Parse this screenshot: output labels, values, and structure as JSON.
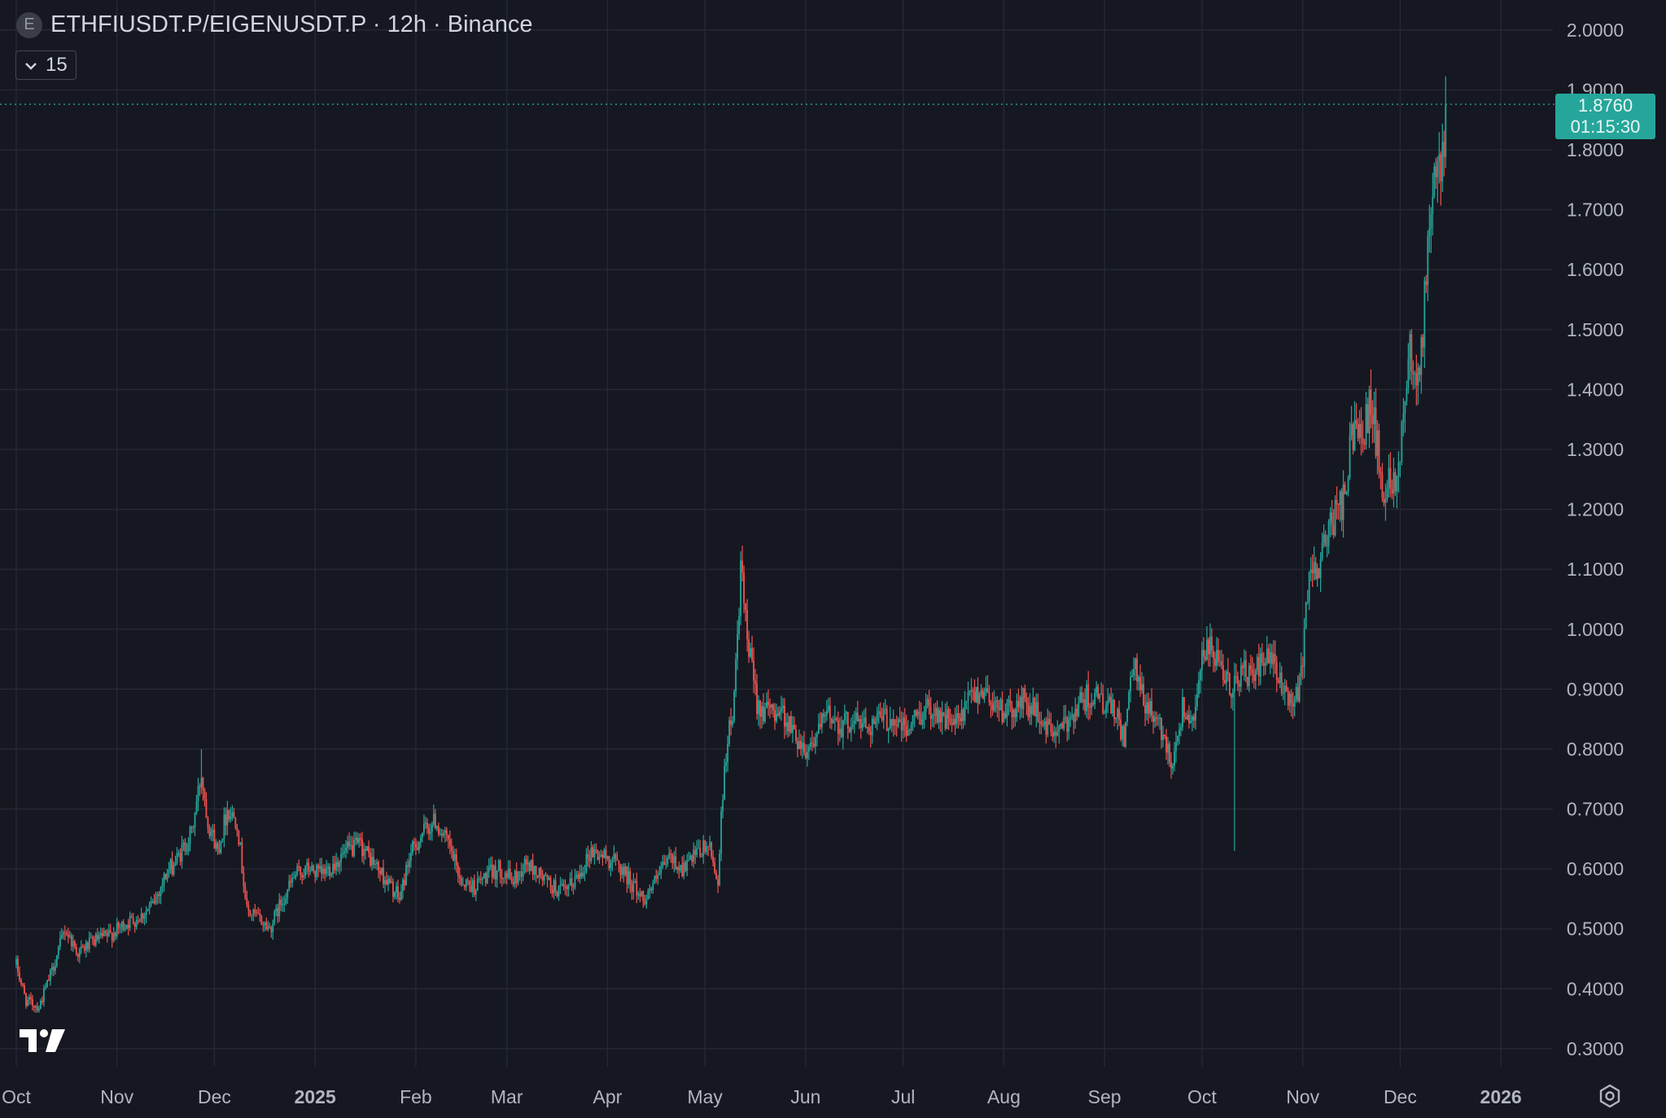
{
  "header": {
    "badge": "E",
    "title": "ETHFIUSDT.P/EIGENUSDT.P · 12h · Binance"
  },
  "interval_selector": {
    "value": "15"
  },
  "last_price": {
    "value": "1.8760",
    "countdown": "01:15:30"
  },
  "colors": {
    "background": "#161821",
    "grid": "#262936",
    "up": "#26a69a",
    "down": "#ef5350",
    "text": "#d1d4dc",
    "axis_text": "#b2b5be"
  },
  "icons": [
    "chevron-down-icon",
    "tradingview-logo-icon",
    "settings-icon"
  ],
  "chart_data": {
    "type": "candlestick",
    "title": "ETHFIUSDT.P/EIGENUSDT.P · 12h · Binance",
    "y_axis": {
      "position": "right",
      "ylim": [
        0.27,
        2.05
      ],
      "ticks": [
        2.0,
        1.9,
        1.8,
        1.7,
        1.6,
        1.5,
        1.4,
        1.3,
        1.2,
        1.1,
        1.0,
        0.9,
        0.8,
        0.7,
        0.6,
        0.5,
        0.4,
        0.3
      ],
      "tick_labels": [
        "2.0000",
        "1.9000",
        "1.8000",
        "1.7000",
        "1.6000",
        "1.5000",
        "1.4000",
        "1.3000",
        "1.2000",
        "1.1000",
        "1.0000",
        "0.9000",
        "0.8000",
        "0.7000",
        "0.6000",
        "0.5000",
        "0.4000",
        "0.3000"
      ]
    },
    "x_axis": {
      "xlim": [
        "2024-09-26",
        "2026-01-17"
      ],
      "ticks": [
        "2024-10-01",
        "2024-11-01",
        "2024-12-01",
        "2025-01-01",
        "2025-02-01",
        "2025-03-01",
        "2025-04-01",
        "2025-05-01",
        "2025-06-01",
        "2025-07-01",
        "2025-08-01",
        "2025-09-01",
        "2025-10-01",
        "2025-11-01",
        "2025-12-01",
        "2026-01-01"
      ],
      "tick_labels": [
        "Oct",
        "Nov",
        "Dec",
        "2025",
        "Feb",
        "Mar",
        "Apr",
        "May",
        "Jun",
        "Jul",
        "Aug",
        "Sep",
        "Oct",
        "Nov",
        "Dec",
        "2026"
      ],
      "bold_labels": [
        "2025",
        "2026"
      ]
    },
    "grid": true,
    "last_price_line": 1.876,
    "series": [
      {
        "interval": "12h",
        "start": "2024-10-01",
        "approx_closes": [
          [
            "2024-10-01",
            0.44
          ],
          [
            "2024-10-04",
            0.38
          ],
          [
            "2024-10-08",
            0.37
          ],
          [
            "2024-10-12",
            0.43
          ],
          [
            "2024-10-16",
            0.5
          ],
          [
            "2024-10-20",
            0.46
          ],
          [
            "2024-10-25",
            0.48
          ],
          [
            "2024-10-30",
            0.49
          ],
          [
            "2024-11-04",
            0.51
          ],
          [
            "2024-11-08",
            0.52
          ],
          [
            "2024-11-12",
            0.54
          ],
          [
            "2024-11-16",
            0.59
          ],
          [
            "2024-11-20",
            0.62
          ],
          [
            "2024-11-24",
            0.66
          ],
          [
            "2024-11-27",
            0.76
          ],
          [
            "2024-11-29",
            0.68
          ],
          [
            "2024-12-02",
            0.63
          ],
          [
            "2024-12-05",
            0.7
          ],
          [
            "2024-12-08",
            0.68
          ],
          [
            "2024-12-11",
            0.53
          ],
          [
            "2024-12-14",
            0.52
          ],
          [
            "2024-12-18",
            0.5
          ],
          [
            "2024-12-22",
            0.55
          ],
          [
            "2024-12-26",
            0.59
          ],
          [
            "2024-12-30",
            0.6
          ],
          [
            "2025-01-03",
            0.59
          ],
          [
            "2025-01-07",
            0.61
          ],
          [
            "2025-01-11",
            0.63
          ],
          [
            "2025-01-15",
            0.64
          ],
          [
            "2025-01-19",
            0.61
          ],
          [
            "2025-01-23",
            0.58
          ],
          [
            "2025-01-27",
            0.55
          ],
          [
            "2025-01-30",
            0.62
          ],
          [
            "2025-02-03",
            0.66
          ],
          [
            "2025-02-07",
            0.68
          ],
          [
            "2025-02-11",
            0.64
          ],
          [
            "2025-02-15",
            0.58
          ],
          [
            "2025-02-19",
            0.57
          ],
          [
            "2025-02-23",
            0.59
          ],
          [
            "2025-02-27",
            0.6
          ],
          [
            "2025-03-03",
            0.58
          ],
          [
            "2025-03-07",
            0.61
          ],
          [
            "2025-03-11",
            0.59
          ],
          [
            "2025-03-15",
            0.57
          ],
          [
            "2025-03-19",
            0.56
          ],
          [
            "2025-03-23",
            0.59
          ],
          [
            "2025-03-27",
            0.63
          ],
          [
            "2025-03-31",
            0.62
          ],
          [
            "2025-04-04",
            0.61
          ],
          [
            "2025-04-08",
            0.58
          ],
          [
            "2025-04-12",
            0.55
          ],
          [
            "2025-04-16",
            0.58
          ],
          [
            "2025-04-20",
            0.62
          ],
          [
            "2025-04-24",
            0.6
          ],
          [
            "2025-04-28",
            0.62
          ],
          [
            "2025-05-02",
            0.64
          ],
          [
            "2025-05-05",
            0.58
          ],
          [
            "2025-05-07",
            0.78
          ],
          [
            "2025-05-10",
            0.88
          ],
          [
            "2025-05-12",
            1.1
          ],
          [
            "2025-05-14",
            0.98
          ],
          [
            "2025-05-17",
            0.88
          ],
          [
            "2025-05-20",
            0.86
          ],
          [
            "2025-05-24",
            0.87
          ],
          [
            "2025-05-28",
            0.83
          ],
          [
            "2025-06-01",
            0.8
          ],
          [
            "2025-06-04",
            0.82
          ],
          [
            "2025-06-08",
            0.86
          ],
          [
            "2025-06-12",
            0.84
          ],
          [
            "2025-06-16",
            0.85
          ],
          [
            "2025-06-20",
            0.84
          ],
          [
            "2025-06-24",
            0.85
          ],
          [
            "2025-06-28",
            0.85
          ],
          [
            "2025-07-02",
            0.83
          ],
          [
            "2025-07-06",
            0.86
          ],
          [
            "2025-07-10",
            0.87
          ],
          [
            "2025-07-14",
            0.85
          ],
          [
            "2025-07-18",
            0.84
          ],
          [
            "2025-07-22",
            0.89
          ],
          [
            "2025-07-26",
            0.9
          ],
          [
            "2025-07-30",
            0.87
          ],
          [
            "2025-08-03",
            0.86
          ],
          [
            "2025-08-07",
            0.88
          ],
          [
            "2025-08-11",
            0.86
          ],
          [
            "2025-08-15",
            0.83
          ],
          [
            "2025-08-19",
            0.83
          ],
          [
            "2025-08-23",
            0.87
          ],
          [
            "2025-08-27",
            0.89
          ],
          [
            "2025-08-31",
            0.88
          ],
          [
            "2025-09-04",
            0.86
          ],
          [
            "2025-09-07",
            0.82
          ],
          [
            "2025-09-10",
            0.94
          ],
          [
            "2025-09-13",
            0.88
          ],
          [
            "2025-09-16",
            0.86
          ],
          [
            "2025-09-19",
            0.82
          ],
          [
            "2025-09-22",
            0.78
          ],
          [
            "2025-09-25",
            0.87
          ],
          [
            "2025-09-28",
            0.85
          ],
          [
            "2025-10-01",
            0.95
          ],
          [
            "2025-10-04",
            0.97
          ],
          [
            "2025-10-07",
            0.92
          ],
          [
            "2025-10-10",
            0.9
          ],
          [
            "2025-10-13",
            0.93
          ],
          [
            "2025-10-16",
            0.92
          ],
          [
            "2025-10-19",
            0.94
          ],
          [
            "2025-10-22",
            0.95
          ],
          [
            "2025-10-25",
            0.91
          ],
          [
            "2025-10-28",
            0.88
          ],
          [
            "2025-10-31",
            0.9
          ],
          [
            "2025-11-02",
            1.02
          ],
          [
            "2025-11-04",
            1.12
          ],
          [
            "2025-11-06",
            1.1
          ],
          [
            "2025-11-08",
            1.15
          ],
          [
            "2025-11-10",
            1.18
          ],
          [
            "2025-11-12",
            1.2
          ],
          [
            "2025-11-14",
            1.22
          ],
          [
            "2025-11-16",
            1.32
          ],
          [
            "2025-11-18",
            1.35
          ],
          [
            "2025-11-20",
            1.34
          ],
          [
            "2025-11-22",
            1.38
          ],
          [
            "2025-11-24",
            1.3
          ],
          [
            "2025-11-26",
            1.22
          ],
          [
            "2025-11-28",
            1.26
          ],
          [
            "2025-11-30",
            1.25
          ],
          [
            "2025-12-02",
            1.36
          ],
          [
            "2025-12-04",
            1.48
          ],
          [
            "2025-12-06",
            1.42
          ],
          [
            "2025-12-08",
            1.5
          ],
          [
            "2025-12-10",
            1.68
          ],
          [
            "2025-12-12",
            1.75
          ],
          [
            "2025-12-14",
            1.78
          ],
          [
            "2025-12-15",
            1.876
          ]
        ],
        "notable_wicks": [
          {
            "date": "2025-10-11",
            "low": 0.63
          },
          {
            "date": "2025-05-12",
            "high": 1.13
          },
          {
            "date": "2024-11-27",
            "high": 0.8
          }
        ]
      }
    ]
  }
}
